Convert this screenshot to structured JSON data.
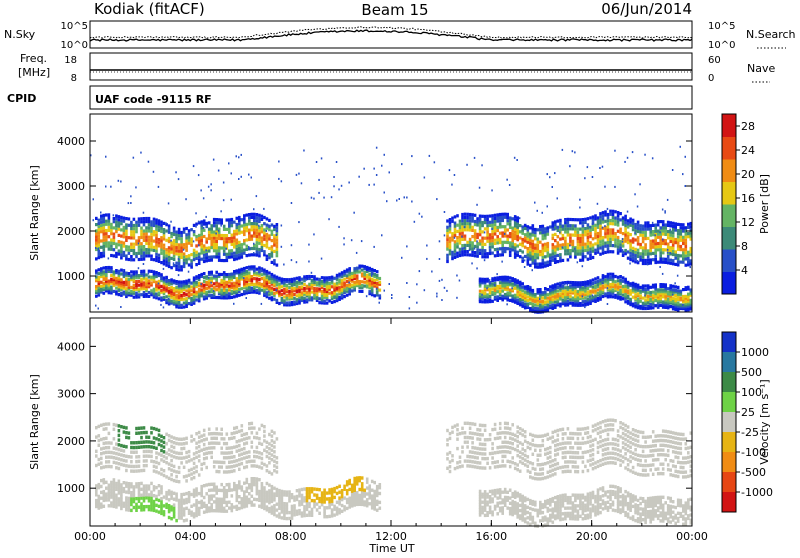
{
  "header": {
    "station": "Kodiak (fitACF)",
    "beam": "Beam 15",
    "date": "06/Jun/2014"
  },
  "status_panels": {
    "noise": {
      "left_label": "N.Sky",
      "right_label": "N.Search",
      "left_ticks": [
        "10^5",
        "10^0"
      ],
      "right_ticks": [
        "10^5",
        "10^0"
      ]
    },
    "frequency": {
      "left_label_line1": "Freq.",
      "left_label_line2": "[MHz]",
      "right_label": "Nave",
      "left_ticks": [
        "18",
        "8"
      ],
      "right_ticks": [
        "60",
        "0"
      ]
    },
    "cpid": {
      "label": "CPID",
      "text": "UAF code -9115 RF"
    }
  },
  "colors": {
    "power_scale": [
      "#0a1ee0",
      "#2850c8",
      "#3c8a78",
      "#64b464",
      "#e6c814",
      "#f08c14",
      "#e84a14",
      "#d21414"
    ],
    "velocity_scale": [
      "#1432c8",
      "#2878a0",
      "#3c8a46",
      "#6ed246",
      "#c8c8c0",
      "#e6b414",
      "#f08c14",
      "#e64614",
      "#d21414"
    ]
  },
  "chart_data": [
    {
      "type": "heatmap",
      "panel": "power",
      "ylabel": "Slant Range [km]",
      "yticks": [
        "1000",
        "2000",
        "3000",
        "4000"
      ],
      "ylim": [
        200,
        4600
      ],
      "xlim": [
        "00:00",
        "24:00"
      ],
      "colorbar": {
        "label": "Power [dB]",
        "ticks": [
          "4",
          "8",
          "12",
          "16",
          "20",
          "24",
          "28"
        ],
        "range": [
          0,
          30
        ]
      },
      "bands": [
        {
          "t0": 0.2,
          "t1": 7.4,
          "r_center": 1800,
          "r_width": 450,
          "peak_db": 26
        },
        {
          "t0": 14.2,
          "t1": 24.0,
          "r_center": 1850,
          "r_width": 450,
          "peak_db": 25
        },
        {
          "t0": 0.2,
          "t1": 11.5,
          "r_center": 800,
          "r_width": 280,
          "peak_db": 28
        },
        {
          "t0": 15.5,
          "t1": 24.0,
          "r_center": 650,
          "r_width": 250,
          "peak_db": 22
        }
      ]
    },
    {
      "type": "heatmap",
      "panel": "velocity",
      "ylabel": "Slant Range [km]",
      "xlabel": "Time UT",
      "yticks": [
        "1000",
        "2000",
        "3000",
        "4000"
      ],
      "ylim": [
        200,
        4600
      ],
      "xlim": [
        "00:00",
        "24:00"
      ],
      "xticks": [
        "00:00",
        "04:00",
        "08:00",
        "12:00",
        "16:00",
        "20:00",
        "00:00"
      ],
      "colorbar": {
        "label": "Velocity [m s⁻¹]",
        "ticks": [
          "1000",
          "500",
          "100",
          "25",
          "-25",
          "-100",
          "-500",
          "-1000"
        ]
      }
    }
  ]
}
